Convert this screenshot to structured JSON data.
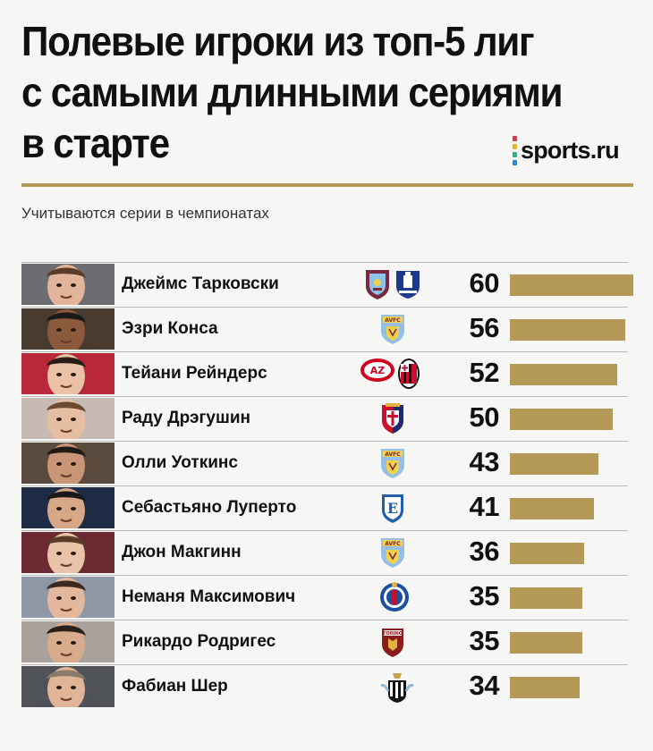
{
  "title_lines": [
    "Полевые игроки из топ-5 лиг",
    "с самыми длинными сериями",
    "в старте"
  ],
  "brand": {
    "logo_text": "sports.ru",
    "dot_colors": [
      "#e8334a",
      "#f4b400",
      "#2bb673",
      "#1e88e5"
    ]
  },
  "subtitle": "Учитываются серии в чемпионатах",
  "colors": {
    "bar": "#b49a56",
    "background": "#f6f6f4"
  },
  "chart_data": {
    "type": "bar",
    "orientation": "horizontal",
    "categories": [
      "Джеймс Тарковски",
      "Эзри Конса",
      "Тейани Рейндерс",
      "Раду Дрэгушин",
      "Олли Уоткинс",
      "Себастьяно Луперто",
      "Джон Макгинн",
      "Неманя Максимович",
      "Рикардо Родригес",
      "Фабиан Шер"
    ],
    "values": [
      60,
      56,
      52,
      50,
      43,
      41,
      36,
      35,
      35,
      34
    ],
    "xlim": [
      0,
      60
    ],
    "grid": false,
    "club_icons": [
      [
        "burnley-crest-icon",
        "everton-crest-icon"
      ],
      [
        "aston-villa-crest-icon"
      ],
      [
        "az-alkmaar-crest-icon",
        "ac-milan-crest-icon"
      ],
      [
        "genoa-crest-icon"
      ],
      [
        "aston-villa-crest-icon"
      ],
      [
        "empoli-crest-icon"
      ],
      [
        "aston-villa-crest-icon"
      ],
      [
        "getafe-crest-icon"
      ],
      [
        "torino-crest-icon"
      ],
      [
        "newcastle-crest-icon"
      ]
    ],
    "player_photos": [
      "player-photo",
      "player-photo",
      "player-photo",
      "player-photo",
      "player-photo",
      "player-photo",
      "player-photo",
      "player-photo",
      "player-photo",
      "player-photo"
    ]
  }
}
